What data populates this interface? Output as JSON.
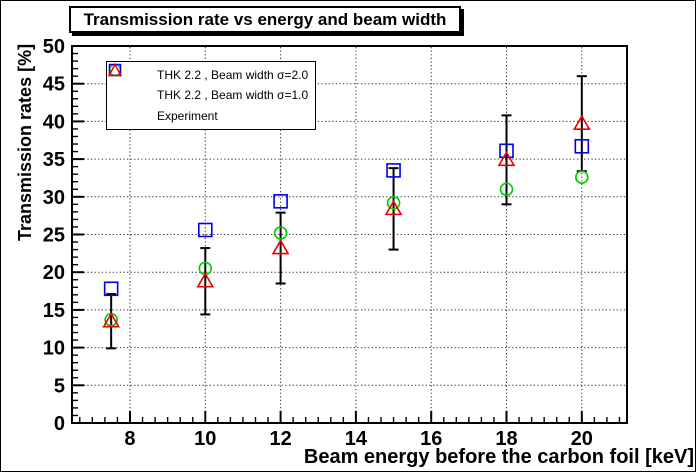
{
  "title": "Transmission rate vs energy and beam width",
  "axes": {
    "x": {
      "title": "Beam energy before the carbon foil [keV]",
      "min": 6.46,
      "max": 21.2,
      "major_ticks": [
        8,
        10,
        12,
        14,
        16,
        18,
        20
      ],
      "minor_divisions_per_major": 6
    },
    "y": {
      "title": "Transmission rates [%]",
      "min": 0,
      "max": 50,
      "major_ticks": [
        0,
        5,
        10,
        15,
        20,
        25,
        30,
        35,
        40,
        45,
        50
      ],
      "minor_step": 1
    }
  },
  "legend": {
    "entries": [
      {
        "label": "THK 2.2 , Beam width σ=2.0",
        "marker": "circle",
        "color": "#00cc00"
      },
      {
        "label": "THK 2.2 , Beam width σ=1.0",
        "marker": "square",
        "color": "#0000ee"
      },
      {
        "label": "Experiment",
        "marker": "triangle",
        "color": "#ee0000"
      }
    ]
  },
  "chart_data": {
    "type": "scatter",
    "title": "Transmission rate vs energy and beam width",
    "xlabel": "Beam energy before the carbon foil [keV]",
    "ylabel": "Transmission rates [%]",
    "xlim": [
      6.46,
      21.2
    ],
    "ylim": [
      0,
      50
    ],
    "grid": "dotted",
    "legend_position": "top-left",
    "x": [
      7.5,
      10,
      12,
      15,
      18,
      20
    ],
    "series": [
      {
        "name": "THK 2.2 , Beam width σ=2.0",
        "marker": "circle",
        "color": "#00cc00",
        "values": [
          13.7,
          20.5,
          25.2,
          29.2,
          31.0,
          32.6
        ]
      },
      {
        "name": "THK 2.2 , Beam width σ=1.0",
        "marker": "square",
        "color": "#0000ee",
        "values": [
          17.8,
          25.6,
          29.4,
          33.5,
          36.1,
          36.7
        ]
      },
      {
        "name": "Experiment",
        "marker": "triangle",
        "color": "#ee0000",
        "values": [
          13.5,
          18.8,
          23.2,
          28.4,
          34.9,
          39.7
        ],
        "yerr": [
          3.6,
          4.4,
          4.7,
          5.4,
          5.9,
          6.3
        ]
      }
    ]
  }
}
